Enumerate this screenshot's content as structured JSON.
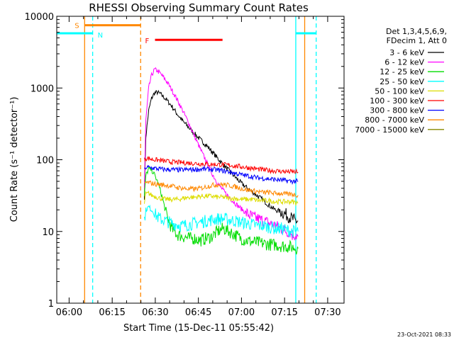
{
  "chart_data": {
    "type": "line",
    "title": "RHESSI Observing Summary Count Rates",
    "xlabel": "Start Time (15-Dec-11 05:55:42)",
    "ylabel": "Count Rate (s⁻¹ detector⁻¹)",
    "y_scale": "log",
    "ylim": [
      1,
      10000
    ],
    "x_units": "minutes after 05:55:42",
    "xlim": [
      0,
      100
    ],
    "x_ticks": [
      {
        "label": "06:00",
        "value": 4.3
      },
      {
        "label": "06:15",
        "value": 19.3
      },
      {
        "label": "06:30",
        "value": 34.3
      },
      {
        "label": "06:45",
        "value": 49.3
      },
      {
        "label": "07:00",
        "value": 64.3
      },
      {
        "label": "07:15",
        "value": 79.3
      },
      {
        "label": "07:30",
        "value": 94.3
      }
    ],
    "y_ticks": [
      {
        "label": "1",
        "value": 1
      },
      {
        "label": "10",
        "value": 10
      },
      {
        "label": "100",
        "value": 100
      },
      {
        "label": "1000",
        "value": 1000
      },
      {
        "label": "10000",
        "value": 10000
      }
    ],
    "legend_header": [
      "Det 1,3,4,5,6,9,",
      "FDecim 1, Att 0"
    ],
    "legend_position": "right",
    "timestamp": "23-Oct-2021 08:33",
    "series": [
      {
        "name": "3 - 6 keV",
        "color": "#000000",
        "x": [
          30.5,
          31,
          32,
          33,
          34,
          35,
          36,
          38,
          40,
          42,
          44,
          46,
          48,
          50,
          52,
          54,
          56,
          58,
          60,
          62,
          64,
          66,
          68,
          70,
          72,
          74,
          76,
          78,
          80,
          81,
          82,
          83,
          84
        ],
        "y": [
          30,
          210,
          480,
          720,
          850,
          870,
          830,
          700,
          560,
          430,
          340,
          280,
          230,
          190,
          160,
          130,
          105,
          85,
          70,
          58,
          48,
          41,
          36,
          31,
          27,
          23,
          20,
          19,
          17,
          16,
          15,
          14,
          14
        ]
      },
      {
        "name": "6 - 12 keV",
        "color": "#ff00ff",
        "x": [
          30.5,
          31,
          32,
          33,
          34,
          35,
          36,
          38,
          40,
          42,
          44,
          46,
          48,
          50,
          52,
          54,
          56,
          58,
          60,
          62,
          64,
          66,
          68,
          70,
          72,
          74,
          76,
          78,
          80,
          81,
          82,
          83,
          84
        ],
        "y": [
          40,
          350,
          1000,
          1500,
          1800,
          1750,
          1600,
          1280,
          950,
          680,
          470,
          320,
          210,
          140,
          95,
          65,
          47,
          37,
          30,
          25,
          21,
          18,
          16,
          15,
          14,
          13,
          12,
          11,
          10,
          10,
          9,
          9,
          8.5
        ]
      },
      {
        "name": "12 - 25 keV",
        "color": "#00dd00",
        "x": [
          30.5,
          31,
          32,
          33,
          34,
          35,
          36,
          37,
          38,
          40,
          42,
          44,
          46,
          48,
          50,
          52,
          54,
          56,
          58,
          60,
          62,
          64,
          66,
          68,
          70,
          72,
          74,
          76,
          78,
          80,
          82,
          84
        ],
        "y": [
          30,
          60,
          75,
          72,
          62,
          50,
          38,
          27,
          18,
          11,
          9,
          8.5,
          8,
          8,
          7.5,
          8,
          8.5,
          10,
          11,
          10,
          9,
          8,
          7.5,
          7.2,
          7,
          6.8,
          6.6,
          6.5,
          6.3,
          6.2,
          6,
          5.8
        ]
      },
      {
        "name": "25 - 50 keV",
        "color": "#00ffff",
        "x": [
          30.5,
          31,
          32,
          33,
          34,
          35,
          36,
          38,
          40,
          42,
          44,
          46,
          48,
          50,
          52,
          54,
          56,
          58,
          60,
          62,
          64,
          66,
          68,
          70,
          72,
          74,
          76,
          78,
          80,
          82,
          84
        ],
        "y": [
          15,
          20,
          22,
          20,
          18,
          16,
          15,
          14,
          13,
          12.5,
          12,
          12.5,
          13,
          13.5,
          14,
          14.5,
          15,
          15,
          14.5,
          14,
          13.5,
          13,
          12.5,
          12,
          12,
          11.5,
          11,
          11,
          10.5,
          10,
          10
        ]
      },
      {
        "name": "50 - 100 keV",
        "color": "#dddd00",
        "x": [
          30.5,
          31,
          32,
          33,
          34,
          35,
          36,
          38,
          40,
          42,
          44,
          46,
          48,
          50,
          52,
          54,
          56,
          58,
          60,
          62,
          64,
          66,
          68,
          70,
          72,
          74,
          76,
          78,
          80,
          82,
          84
        ],
        "y": [
          25,
          33,
          34,
          32,
          31,
          30,
          29,
          28,
          28,
          28,
          29,
          30,
          30,
          31,
          31,
          31,
          30,
          30,
          29,
          29,
          28,
          28,
          28,
          27,
          27,
          27,
          26,
          26,
          26,
          26,
          25
        ]
      },
      {
        "name": "100 - 300 keV",
        "color": "#ff0000",
        "x": [
          30.5,
          31,
          32,
          34,
          36,
          38,
          40,
          42,
          44,
          46,
          48,
          50,
          52,
          54,
          56,
          58,
          60,
          62,
          64,
          66,
          68,
          70,
          72,
          74,
          76,
          78,
          80,
          82,
          84
        ],
        "y": [
          100,
          105,
          104,
          100,
          98,
          95,
          93,
          92,
          91,
          90,
          89,
          88,
          87,
          86,
          86,
          85,
          84,
          82,
          80,
          78,
          76,
          74,
          72,
          71,
          70,
          69,
          68,
          68,
          67
        ]
      },
      {
        "name": "300 - 800 keV",
        "color": "#0000ff",
        "x": [
          30.5,
          31,
          32,
          34,
          36,
          38,
          40,
          42,
          44,
          46,
          48,
          50,
          52,
          54,
          56,
          58,
          60,
          62,
          64,
          66,
          68,
          70,
          72,
          74,
          76,
          78,
          80,
          82,
          84
        ],
        "y": [
          70,
          78,
          78,
          76,
          74,
          73,
          73,
          72,
          72,
          73,
          73,
          74,
          74,
          73,
          72,
          70,
          68,
          65,
          62,
          60,
          58,
          56,
          55,
          54,
          53,
          52,
          51,
          50,
          50
        ]
      },
      {
        "name": "800 - 7000 keV",
        "color": "#ff8800",
        "x": [
          30.5,
          31,
          32,
          34,
          36,
          38,
          40,
          42,
          44,
          46,
          48,
          50,
          52,
          54,
          56,
          58,
          60,
          62,
          64,
          66,
          68,
          70,
          72,
          74,
          76,
          78,
          80,
          82,
          84
        ],
        "y": [
          45,
          48,
          48,
          46,
          45,
          44,
          43,
          41,
          40,
          39,
          39,
          40,
          42,
          44,
          45,
          45,
          44,
          42,
          40,
          38,
          37,
          36,
          35,
          35,
          34,
          34,
          33,
          33,
          32
        ]
      },
      {
        "name": "7000 - 15000 keV",
        "color": "#888800",
        "x": [],
        "y": []
      }
    ],
    "bars": [
      {
        "label": "S",
        "color": "#ff8800",
        "x0": 9.7,
        "x1": 29.2,
        "y": 7500
      },
      {
        "label": "N",
        "color": "#00ffff",
        "x0": -1,
        "x1": 12.5,
        "y": 5800
      },
      {
        "label": "N",
        "color": "#00ffff",
        "x0": 83.2,
        "x1": 90.3,
        "y": 5800
      },
      {
        "label": "F",
        "color": "#ff0000",
        "x0": 34.2,
        "x1": 57.7,
        "y": 4700
      }
    ],
    "vlines": [
      {
        "x": -0.4,
        "color": "#00ffff",
        "dashed": false
      },
      {
        "x": 9.7,
        "color": "#ff8800",
        "dashed": false
      },
      {
        "x": 12.5,
        "color": "#00ffff",
        "dashed": true
      },
      {
        "x": 29.2,
        "color": "#ff8800",
        "dashed": true
      },
      {
        "x": 83.2,
        "color": "#00ffff",
        "dashed": false
      },
      {
        "x": 86.3,
        "color": "#ff8800",
        "dashed": false
      },
      {
        "x": 90.3,
        "color": "#00ffff",
        "dashed": true
      }
    ]
  }
}
